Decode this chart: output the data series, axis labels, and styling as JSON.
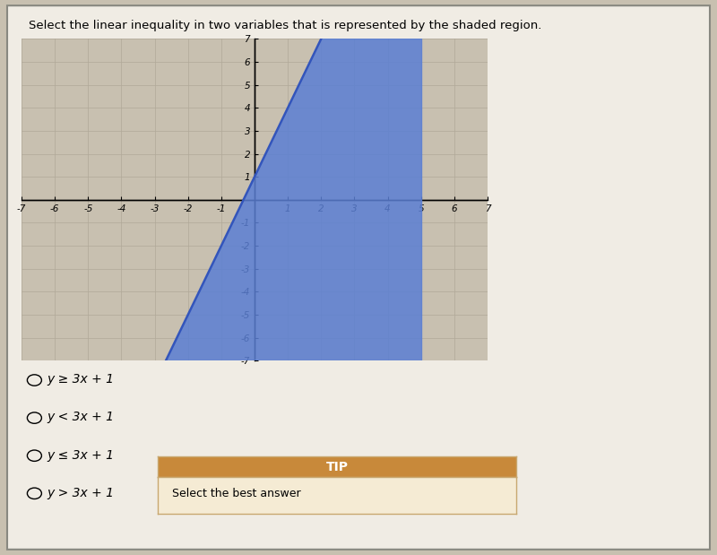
{
  "title": "Select the linear inequality in two variables that is represented by the shaded region.",
  "xlim": [
    -7,
    7
  ],
  "ylim": [
    -7,
    7
  ],
  "xticks": [
    -7,
    -6,
    -5,
    -4,
    -3,
    -2,
    -1,
    1,
    2,
    3,
    4,
    5,
    6,
    7
  ],
  "yticks": [
    -7,
    -6,
    -5,
    -4,
    -3,
    -2,
    -1,
    1,
    2,
    3,
    4,
    5,
    6,
    7
  ],
  "slope": 3,
  "intercept": 1,
  "shade_color": "#5b7fd4",
  "shade_alpha": 0.85,
  "line_color": "#3355bb",
  "bg_color": "#c8c0b0",
  "plot_bg_color": "#c8c0b0",
  "grid_color": "#b0a898",
  "grid_major_color": "#999090",
  "outer_bg": "#c8c0b0",
  "panel_bg": "#f0ece4",
  "choices": [
    "y ≥ 3x + 1",
    "y < 3x + 1",
    "y ≤ 3x + 1",
    "y > 3x + 1"
  ],
  "tip_header": "TIP",
  "tip_body": "Select the best answer",
  "tip_header_color": "#c8893a",
  "tip_box_color": "#f5ebd4",
  "tip_border_color": "#c8a870",
  "shade_x_right": 5
}
